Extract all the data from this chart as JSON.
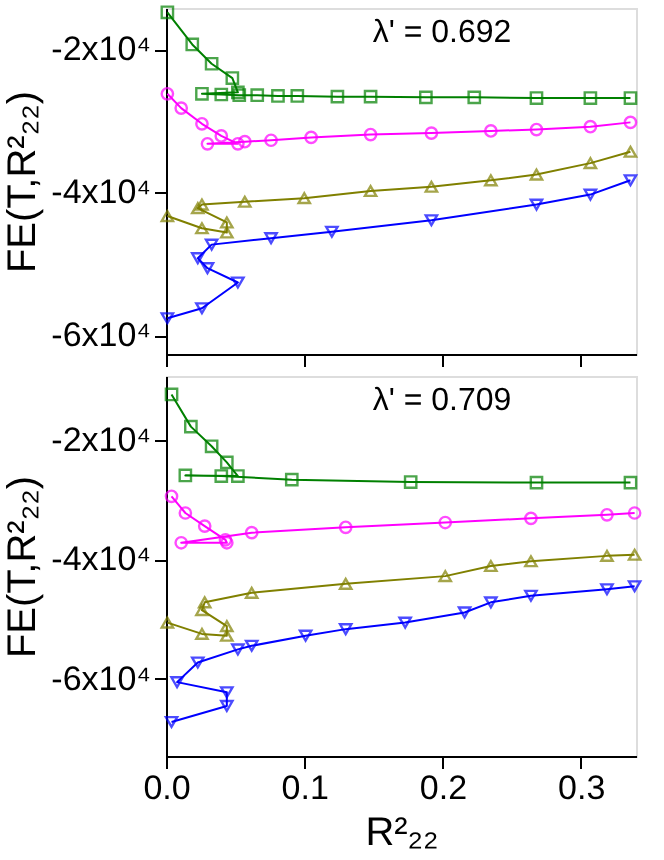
{
  "chart_data": [
    {
      "type": "line",
      "ylabel": "FE(T,R²₂₂)",
      "annotations": [
        "λ' = 0.692"
      ],
      "xlim": [
        0,
        0.34
      ],
      "xticks": [
        0,
        0.1,
        0.2,
        0.3
      ],
      "ylim": [
        -62600,
        -14200
      ],
      "yticks": [
        {
          "value": -20000,
          "label": "-2x10⁴"
        },
        {
          "value": -40000,
          "label": "-4x10⁴"
        },
        {
          "value": -60000,
          "label": "-6x10⁴"
        }
      ],
      "tick_labels": "y",
      "grid": false,
      "series": [
        {
          "color": "#008000",
          "marker": "square",
          "x": [
            0.001,
            0.019,
            0.033,
            0.048,
            0.052,
            0.026,
            0.04,
            0.053,
            0.066,
            0.081,
            0.095,
            0.124,
            0.148,
            0.188,
            0.223,
            0.268,
            0.307,
            0.336
          ],
          "values": [
            -14800,
            -19300,
            -22000,
            -24000,
            -26000,
            -26200,
            -26300,
            -26400,
            -26400,
            -26500,
            -26500,
            -26600,
            -26600,
            -26700,
            -26700,
            -26800,
            -26800,
            -26800
          ]
        },
        {
          "color": "#ff00ff",
          "marker": "circle",
          "x": [
            0.001,
            0.011,
            0.026,
            0.04,
            0.052,
            0.03,
            0.057,
            0.076,
            0.105,
            0.148,
            0.192,
            0.235,
            0.268,
            0.307,
            0.336
          ],
          "values": [
            -26200,
            -28200,
            -30400,
            -32100,
            -33200,
            -33200,
            -32900,
            -32700,
            -32300,
            -31900,
            -31700,
            -31400,
            -31200,
            -30800,
            -30200
          ]
        },
        {
          "color": "#808000",
          "marker": "triangle",
          "x": [
            0.001,
            0.026,
            0.044,
            0.044,
            0.023,
            0.026,
            0.057,
            0.1,
            0.148,
            0.192,
            0.235,
            0.268,
            0.307,
            0.336
          ],
          "values": [
            -43300,
            -45000,
            -45600,
            -44200,
            -42200,
            -41700,
            -41300,
            -40800,
            -39800,
            -39200,
            -38300,
            -37500,
            -35900,
            -34300
          ]
        },
        {
          "color": "#0000ff",
          "marker": "triangle-down",
          "x": [
            0.001,
            0.026,
            0.052,
            0.03,
            0.023,
            0.033,
            0.076,
            0.12,
            0.192,
            0.268,
            0.307,
            0.336
          ],
          "values": [
            -57600,
            -56200,
            -52600,
            -50600,
            -49200,
            -47300,
            -46400,
            -45500,
            -43900,
            -41700,
            -40300,
            -38300
          ]
        }
      ]
    },
    {
      "type": "line",
      "xlabel": "R²₂₂",
      "ylabel": "FE(T,R²₂₂)",
      "annotations": [
        "λ' = 0.709"
      ],
      "xlim": [
        0,
        0.34
      ],
      "xticks": [
        {
          "value": 0,
          "label": "0.0"
        },
        0.1,
        0.2,
        0.3
      ],
      "ylim": [
        -73000,
        -9200
      ],
      "yticks": [
        {
          "value": -20000,
          "label": "-2x10⁴"
        },
        {
          "value": -40000,
          "label": "-4x10⁴"
        },
        {
          "value": -60000,
          "label": "-6x10⁴"
        }
      ],
      "grid": false,
      "series": [
        {
          "color": "#008000",
          "marker": "square",
          "x": [
            0.004,
            0.018,
            0.033,
            0.044,
            0.052,
            0.014,
            0.04,
            0.091,
            0.177,
            0.268,
            0.336
          ],
          "values": [
            -12300,
            -17700,
            -21000,
            -23700,
            -26000,
            -25900,
            -26000,
            -26600,
            -27000,
            -27100,
            -27100
          ]
        },
        {
          "color": "#ff00ff",
          "marker": "circle",
          "x": [
            0.004,
            0.014,
            0.028,
            0.043,
            0.044,
            0.011,
            0.062,
            0.13,
            0.202,
            0.264,
            0.319,
            0.339
          ],
          "values": [
            -29400,
            -32200,
            -34400,
            -36700,
            -37200,
            -37200,
            -35500,
            -34600,
            -33800,
            -33100,
            -32500,
            -32200
          ]
        },
        {
          "color": "#808000",
          "marker": "triangle",
          "x": [
            0.001,
            0.026,
            0.044,
            0.044,
            0.026,
            0.028,
            0.062,
            0.13,
            0.202,
            0.235,
            0.264,
            0.319,
            0.339
          ],
          "values": [
            -50600,
            -52500,
            -52800,
            -51200,
            -48500,
            -47200,
            -45600,
            -44100,
            -42800,
            -41100,
            -40300,
            -39400,
            -39200
          ]
        },
        {
          "color": "#0000ff",
          "marker": "triangle-down",
          "x": [
            0.004,
            0.044,
            0.044,
            0.008,
            0.023,
            0.052,
            0.062,
            0.101,
            0.13,
            0.173,
            0.216,
            0.235,
            0.264,
            0.319,
            0.339
          ],
          "values": [
            -67300,
            -64600,
            -62300,
            -60600,
            -57300,
            -55100,
            -54500,
            -52800,
            -51700,
            -50600,
            -48900,
            -47200,
            -46100,
            -45000,
            -44500
          ]
        }
      ]
    }
  ]
}
